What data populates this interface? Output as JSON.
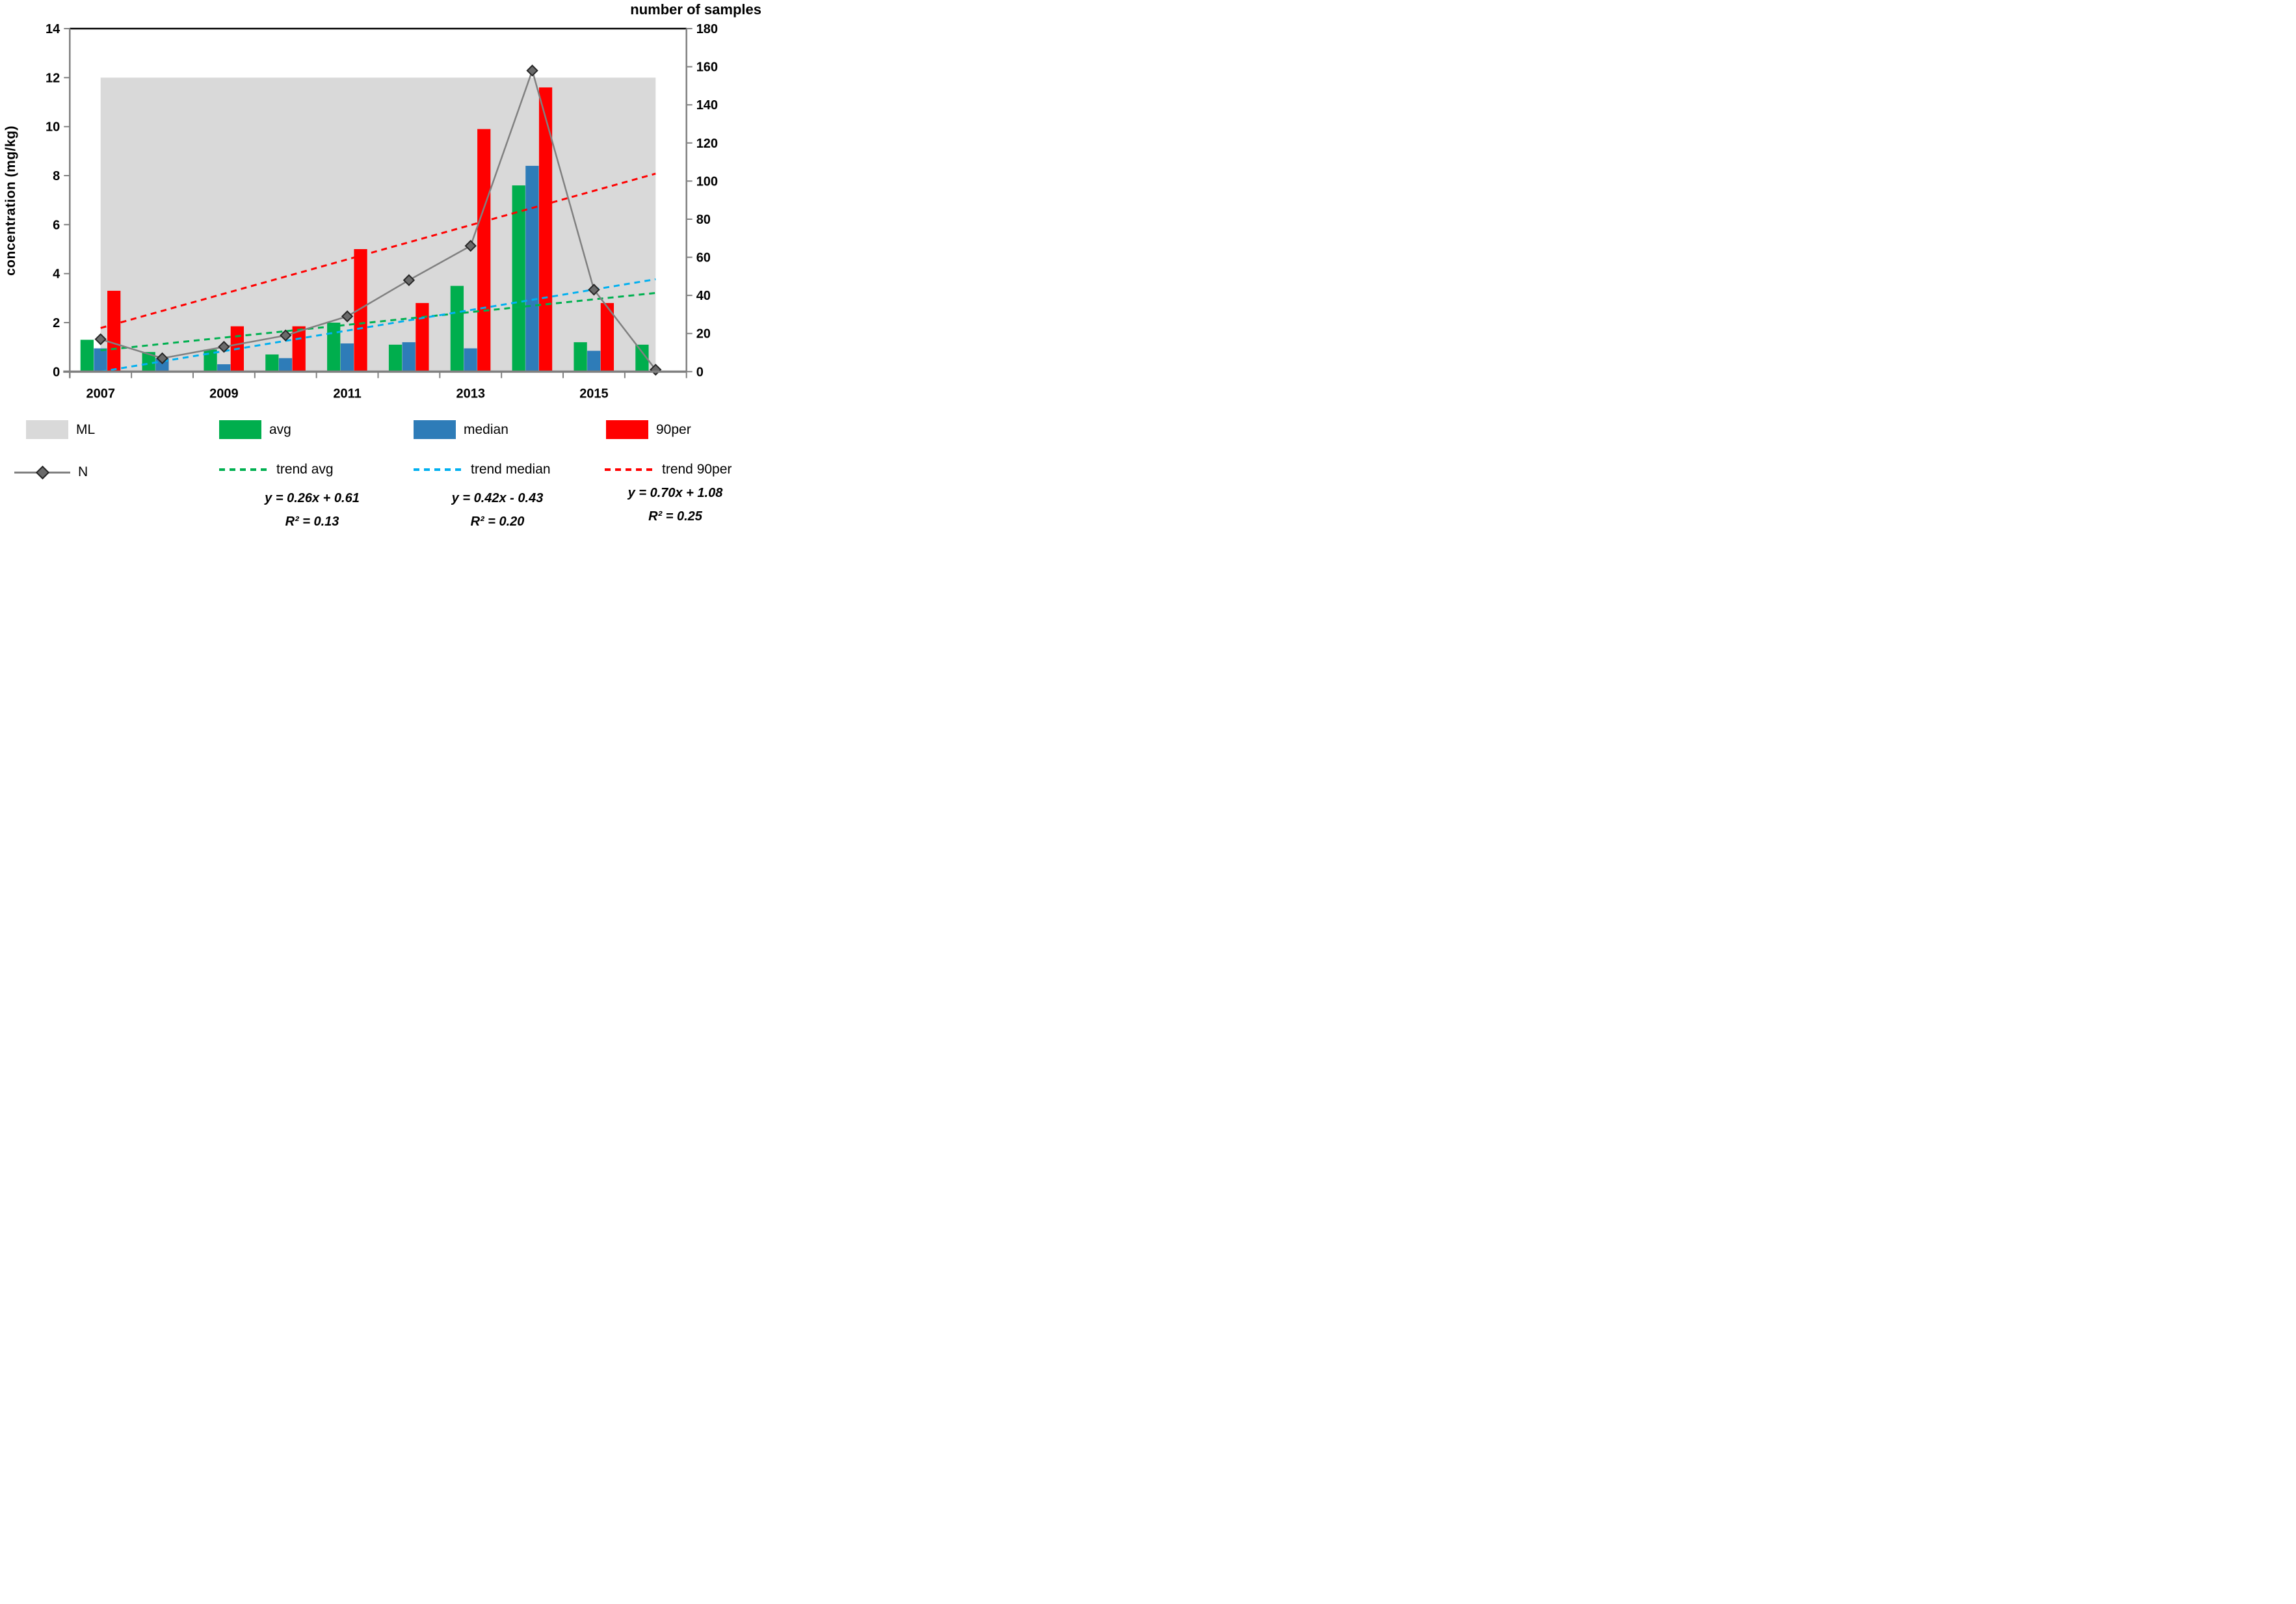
{
  "figure": {
    "left_axis_title": "concentration  (mg/kg)",
    "right_axis_title": "number of samples"
  },
  "chart_data": {
    "type": "bar",
    "subtype": "combo-bar-line",
    "categories": [
      2007,
      2008,
      2009,
      2010,
      2011,
      2012,
      2013,
      2014,
      2015,
      2016
    ],
    "x_tick_labels": [
      "2007",
      "2009",
      "2011",
      "2013",
      "2015"
    ],
    "x_tick_label_indices": [
      0,
      2,
      4,
      6,
      8
    ],
    "left_axis": {
      "label": "concentration  (mg/kg)",
      "min": 0,
      "max": 14,
      "step": 2
    },
    "right_axis": {
      "label": "number of samples",
      "min": 0,
      "max": 180,
      "step": 20
    },
    "ml_band": {
      "name": "ML",
      "value": 12,
      "color": "#d9d9d9"
    },
    "series": [
      {
        "name": "avg",
        "type": "bar",
        "axis": "left",
        "color": "#00ae4d",
        "values": [
          1.3,
          0.8,
          0.9,
          0.7,
          2.0,
          1.1,
          3.5,
          7.6,
          1.2,
          1.1
        ]
      },
      {
        "name": "median",
        "type": "bar",
        "axis": "left",
        "color": "#2e7cb8",
        "values": [
          0.95,
          0.55,
          0.3,
          0.55,
          1.15,
          1.2,
          0.95,
          8.4,
          0.85,
          0
        ]
      },
      {
        "name": "90per",
        "type": "bar",
        "axis": "left",
        "color": "#ff0000",
        "values": [
          3.3,
          0,
          1.85,
          1.85,
          5.0,
          2.8,
          9.9,
          11.6,
          2.8,
          0
        ]
      },
      {
        "name": "N",
        "type": "line",
        "axis": "right",
        "color": "#808080",
        "marker": "diamond",
        "values": [
          17,
          7,
          13,
          19,
          29,
          48,
          66,
          158,
          43,
          1
        ]
      }
    ],
    "trendlines": [
      {
        "name": "trend avg",
        "color": "#00b050",
        "slope": 0.26,
        "intercept": 0.61,
        "r2": 0.13
      },
      {
        "name": "trend median",
        "color": "#00b0f0",
        "slope": 0.42,
        "intercept": -0.43,
        "r2": 0.2
      },
      {
        "name": "trend 90per",
        "color": "#ff0000",
        "slope": 0.7,
        "intercept": 1.08,
        "r2": 0.25
      }
    ],
    "legend_position": "bottom",
    "grid": false
  },
  "legend": {
    "row1": [
      {
        "label": "ML",
        "type": "band",
        "color": "#d9d9d9"
      },
      {
        "label": "avg",
        "type": "bar",
        "color": "#00ae4d"
      },
      {
        "label": "median",
        "type": "bar",
        "color": "#2e7cb8"
      },
      {
        "label": "90per",
        "type": "bar",
        "color": "#ff0000"
      }
    ],
    "row2": [
      {
        "label": "N",
        "type": "line-diamond",
        "color": "#808080"
      },
      {
        "label": "trend avg",
        "type": "dashed",
        "color": "#00b050"
      },
      {
        "label": "trend median",
        "type": "dashed",
        "color": "#00b0f0"
      },
      {
        "label": "trend 90per",
        "type": "dashed",
        "color": "#ff0000"
      }
    ]
  },
  "equations": [
    {
      "line1": "y = 0.26x + 0.61",
      "line2": "R² = 0.13"
    },
    {
      "line1": "y = 0.42x - 0.43",
      "line2": "R² = 0.20"
    },
    {
      "line1": "y = 0.70x + 1.08",
      "line2": "R² = 0.25"
    }
  ]
}
